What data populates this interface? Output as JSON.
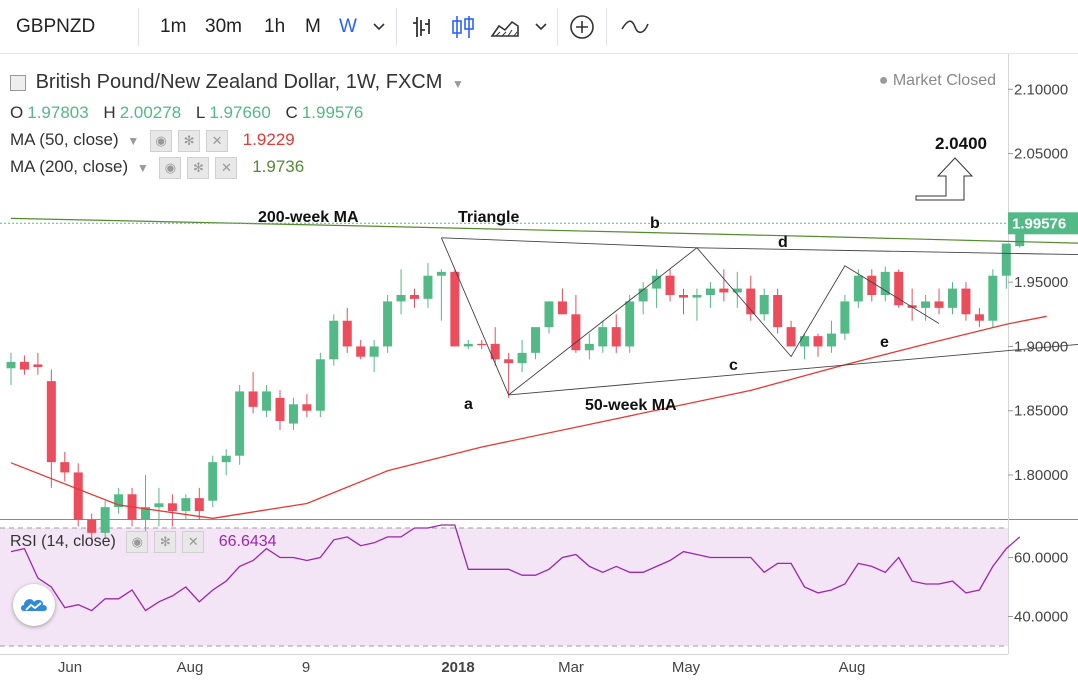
{
  "toolbar": {
    "symbol": "GBPNZD",
    "intervals": [
      "1m",
      "30m",
      "1h",
      "M",
      "W"
    ],
    "active_interval": "W",
    "icons": [
      "chevron-down-icon",
      "bar-chart-icon",
      "candlestick-icon",
      "area-chart-icon",
      "chevron-down-icon",
      "add-indicator-icon",
      "compare-icon"
    ]
  },
  "legend": {
    "title": "British Pound/New Zealand Dollar, 1W, FXCM",
    "market_status": "Market Closed",
    "ohlc": {
      "o_label": "O",
      "o": "1.97803",
      "h_label": "H",
      "h": "2.00278",
      "l_label": "L",
      "l": "1.97660",
      "c_label": "C",
      "c": "1.99576"
    },
    "ma50": {
      "label": "MA (50, close)",
      "value": "1.9229"
    },
    "ma200": {
      "label": "MA (200, close)",
      "value": "1.9736"
    },
    "rsi": {
      "label": "RSI (14, close)",
      "value": "66.6434"
    }
  },
  "colors": {
    "up": "#53b987",
    "down": "#eb4d5c",
    "ma50": "#e53935",
    "ma200": "#558b2f",
    "rsi_line": "#9c27b0",
    "rsi_fill": "#f3e5f5",
    "accent": "#2962ff"
  },
  "chart_data": [
    {
      "type": "candlestick",
      "title": "British Pound/New Zealand Dollar, 1W, FXCM",
      "ylim": [
        1.765,
        2.115
      ],
      "y_ticks": [
        "2.10000",
        "2.05000",
        "2.00000",
        "1.95000",
        "1.90000",
        "1.85000",
        "1.80000"
      ],
      "x_ticks": [
        "Jun",
        "Aug",
        "9",
        "2018",
        "Mar",
        "May",
        "Aug"
      ],
      "last_price": "1.99576",
      "candles": [
        [
          1.883,
          1.895,
          1.87,
          1.888
        ],
        [
          1.888,
          1.893,
          1.878,
          1.882
        ],
        [
          1.886,
          1.895,
          1.878,
          1.884
        ],
        [
          1.873,
          1.882,
          1.79,
          1.81
        ],
        [
          1.81,
          1.818,
          1.795,
          1.802
        ],
        [
          1.802,
          1.809,
          1.76,
          1.765
        ],
        [
          1.765,
          1.77,
          1.75,
          1.755
        ],
        [
          1.755,
          1.78,
          1.75,
          1.775
        ],
        [
          1.775,
          1.79,
          1.77,
          1.785
        ],
        [
          1.785,
          1.79,
          1.76,
          1.765
        ],
        [
          1.765,
          1.8,
          1.75,
          1.775
        ],
        [
          1.775,
          1.79,
          1.76,
          1.778
        ],
        [
          1.778,
          1.785,
          1.76,
          1.772
        ],
        [
          1.772,
          1.785,
          1.765,
          1.782
        ],
        [
          1.782,
          1.79,
          1.765,
          1.772
        ],
        [
          1.78,
          1.815,
          1.775,
          1.81
        ],
        [
          1.81,
          1.82,
          1.8,
          1.815
        ],
        [
          1.815,
          1.87,
          1.808,
          1.865
        ],
        [
          1.865,
          1.88,
          1.848,
          1.853
        ],
        [
          1.85,
          1.87,
          1.845,
          1.865
        ],
        [
          1.86,
          1.866,
          1.835,
          1.842
        ],
        [
          1.84,
          1.86,
          1.835,
          1.855
        ],
        [
          1.855,
          1.863,
          1.845,
          1.85
        ],
        [
          1.85,
          1.895,
          1.845,
          1.89
        ],
        [
          1.89,
          1.925,
          1.885,
          1.92
        ],
        [
          1.92,
          1.93,
          1.895,
          1.9
        ],
        [
          1.9,
          1.905,
          1.89,
          1.892
        ],
        [
          1.892,
          1.905,
          1.88,
          1.9
        ],
        [
          1.9,
          1.94,
          1.895,
          1.935
        ],
        [
          1.935,
          1.96,
          1.925,
          1.94
        ],
        [
          1.94,
          1.945,
          1.93,
          1.937
        ],
        [
          1.937,
          1.965,
          1.93,
          1.955
        ],
        [
          1.955,
          1.96,
          1.92,
          1.958
        ],
        [
          1.958,
          1.96,
          1.9,
          1.9
        ],
        [
          1.9,
          1.905,
          1.898,
          1.902
        ],
        [
          1.902,
          1.905,
          1.898,
          1.901
        ],
        [
          1.902,
          1.915,
          1.885,
          1.89
        ],
        [
          1.89,
          1.895,
          1.86,
          1.887
        ],
        [
          1.887,
          1.905,
          1.88,
          1.895
        ],
        [
          1.895,
          1.915,
          1.89,
          1.915
        ],
        [
          1.915,
          1.935,
          1.91,
          1.935
        ],
        [
          1.935,
          1.945,
          1.925,
          1.925
        ],
        [
          1.925,
          1.94,
          1.895,
          1.897
        ],
        [
          1.897,
          1.91,
          1.89,
          1.902
        ],
        [
          1.9,
          1.92,
          1.895,
          1.915
        ],
        [
          1.915,
          1.925,
          1.895,
          1.9
        ],
        [
          1.9,
          1.94,
          1.895,
          1.935
        ],
        [
          1.935,
          1.95,
          1.925,
          1.945
        ],
        [
          1.945,
          1.96,
          1.93,
          1.955
        ],
        [
          1.955,
          1.96,
          1.935,
          1.94
        ],
        [
          1.94,
          1.945,
          1.925,
          1.938
        ],
        [
          1.938,
          1.945,
          1.92,
          1.94
        ],
        [
          1.94,
          1.95,
          1.93,
          1.945
        ],
        [
          1.945,
          1.96,
          1.935,
          1.942
        ],
        [
          1.942,
          1.958,
          1.93,
          1.945
        ],
        [
          1.945,
          1.955,
          1.92,
          1.925
        ],
        [
          1.925,
          1.945,
          1.92,
          1.94
        ],
        [
          1.94,
          1.945,
          1.91,
          1.915
        ],
        [
          1.915,
          1.92,
          1.9,
          1.9
        ],
        [
          1.9,
          1.91,
          1.89,
          1.908
        ],
        [
          1.908,
          1.91,
          1.892,
          1.9
        ],
        [
          1.9,
          1.92,
          1.895,
          1.91
        ],
        [
          1.91,
          1.94,
          1.905,
          1.935
        ],
        [
          1.935,
          1.96,
          1.93,
          1.955
        ],
        [
          1.955,
          1.96,
          1.935,
          1.94
        ],
        [
          1.94,
          1.962,
          1.935,
          1.958
        ],
        [
          1.958,
          1.96,
          1.93,
          1.932
        ],
        [
          1.932,
          1.945,
          1.92,
          1.93
        ],
        [
          1.93,
          1.94,
          1.92,
          1.935
        ],
        [
          1.935,
          1.945,
          1.925,
          1.93
        ],
        [
          1.93,
          1.95,
          1.925,
          1.945
        ],
        [
          1.945,
          1.95,
          1.92,
          1.925
        ],
        [
          1.925,
          1.93,
          1.915,
          1.92
        ],
        [
          1.92,
          1.96,
          1.915,
          1.955
        ],
        [
          1.955,
          1.98,
          1.945,
          1.98
        ],
        [
          1.978,
          2.003,
          1.977,
          1.996
        ]
      ],
      "ma200": [
        [
          0,
          1.9996
        ],
        [
          25,
          1.994
        ],
        [
          60,
          1.9855
        ],
        [
          85,
          1.9788
        ],
        [
          98,
          1.9739
        ]
      ],
      "ma50": [
        [
          0,
          1.8095
        ],
        [
          8,
          1.7767
        ],
        [
          15,
          1.7663
        ],
        [
          22,
          1.7778
        ],
        [
          28,
          1.8033
        ],
        [
          35,
          1.8218
        ],
        [
          45,
          1.8438
        ],
        [
          55,
          1.8658
        ],
        [
          62,
          1.8858
        ],
        [
          68,
          1.9018
        ],
        [
          74,
          1.9173
        ],
        [
          77,
          1.9234
        ]
      ],
      "triangle_upper": [
        [
          32,
          1.9845
        ],
        [
          51,
          1.9767
        ],
        [
          98,
          1.9679
        ]
      ],
      "triangle_lower": [
        [
          37,
          1.8623
        ],
        [
          97,
          1.9179
        ]
      ],
      "wave": [
        [
          32,
          1.9845
        ],
        [
          37,
          1.8623
        ],
        [
          51,
          1.9767
        ],
        [
          58,
          1.8922
        ],
        [
          62,
          1.9627
        ],
        [
          69,
          1.9178
        ]
      ],
      "wave_labels": [
        "a",
        "b",
        "c",
        "d",
        "e"
      ],
      "annotations": [
        "200-week MA",
        "Triangle",
        "50-week MA"
      ],
      "target": "2.0400"
    },
    {
      "type": "line",
      "title": "RSI (14, close)",
      "ylim": [
        30,
        70
      ],
      "y_ticks": [
        "60.0000",
        "40.0000"
      ],
      "levels": [
        70,
        30
      ],
      "values": [
        62,
        63,
        53,
        50,
        43,
        44,
        42,
        46,
        46,
        49,
        42,
        45,
        47,
        50,
        45,
        49,
        52,
        57,
        59,
        63,
        60,
        60,
        59,
        60,
        66,
        67,
        64,
        65,
        67,
        67,
        70,
        70,
        71,
        71,
        56,
        56,
        56,
        56,
        54,
        54,
        56,
        60,
        61,
        57,
        55,
        57,
        55,
        55,
        57,
        59,
        62,
        61,
        60,
        60,
        60,
        60,
        55,
        58,
        58,
        50,
        48,
        49,
        51,
        58,
        57,
        55,
        60,
        52,
        51,
        51,
        52,
        48,
        49,
        57,
        63,
        67
      ]
    }
  ]
}
